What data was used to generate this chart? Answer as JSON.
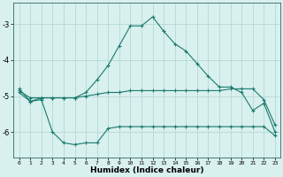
{
  "xlabel": "Humidex (Indice chaleur)",
  "x": [
    0,
    1,
    2,
    3,
    4,
    5,
    6,
    7,
    8,
    9,
    10,
    11,
    12,
    13,
    14,
    15,
    16,
    17,
    18,
    19,
    20,
    21,
    22,
    23
  ],
  "y_max": [
    -4.8,
    -5.15,
    -5.05,
    -5.05,
    -5.05,
    -5.05,
    -4.9,
    -4.55,
    -4.15,
    -3.6,
    -3.05,
    -3.05,
    -2.8,
    -3.2,
    -3.55,
    -3.75,
    -4.1,
    -4.45,
    -4.75,
    -4.75,
    -4.9,
    -5.4,
    -5.2,
    -6.0
  ],
  "y_mean": [
    -4.85,
    -5.05,
    -5.05,
    -5.05,
    -5.05,
    -5.05,
    -5.0,
    -4.95,
    -4.9,
    -4.9,
    -4.85,
    -4.85,
    -4.85,
    -4.85,
    -4.85,
    -4.85,
    -4.85,
    -4.85,
    -4.85,
    -4.8,
    -4.8,
    -4.8,
    -5.1,
    -5.8
  ],
  "y_min": [
    -4.9,
    -5.15,
    -5.1,
    -6.0,
    -6.3,
    -6.35,
    -6.3,
    -6.3,
    -5.9,
    -5.85,
    -5.85,
    -5.85,
    -5.85,
    -5.85,
    -5.85,
    -5.85,
    -5.85,
    -5.85,
    -5.85,
    -5.85,
    -5.85,
    -5.85,
    -5.85,
    -6.1
  ],
  "line_color": "#1a7a6e",
  "bg_color": "#d8f0ee",
  "grid_color": "#aed4d0",
  "ylim": [
    -6.7,
    -2.4
  ],
  "yticks": [
    -6,
    -5,
    -4,
    -3
  ],
  "xlim": [
    -0.5,
    23.5
  ]
}
